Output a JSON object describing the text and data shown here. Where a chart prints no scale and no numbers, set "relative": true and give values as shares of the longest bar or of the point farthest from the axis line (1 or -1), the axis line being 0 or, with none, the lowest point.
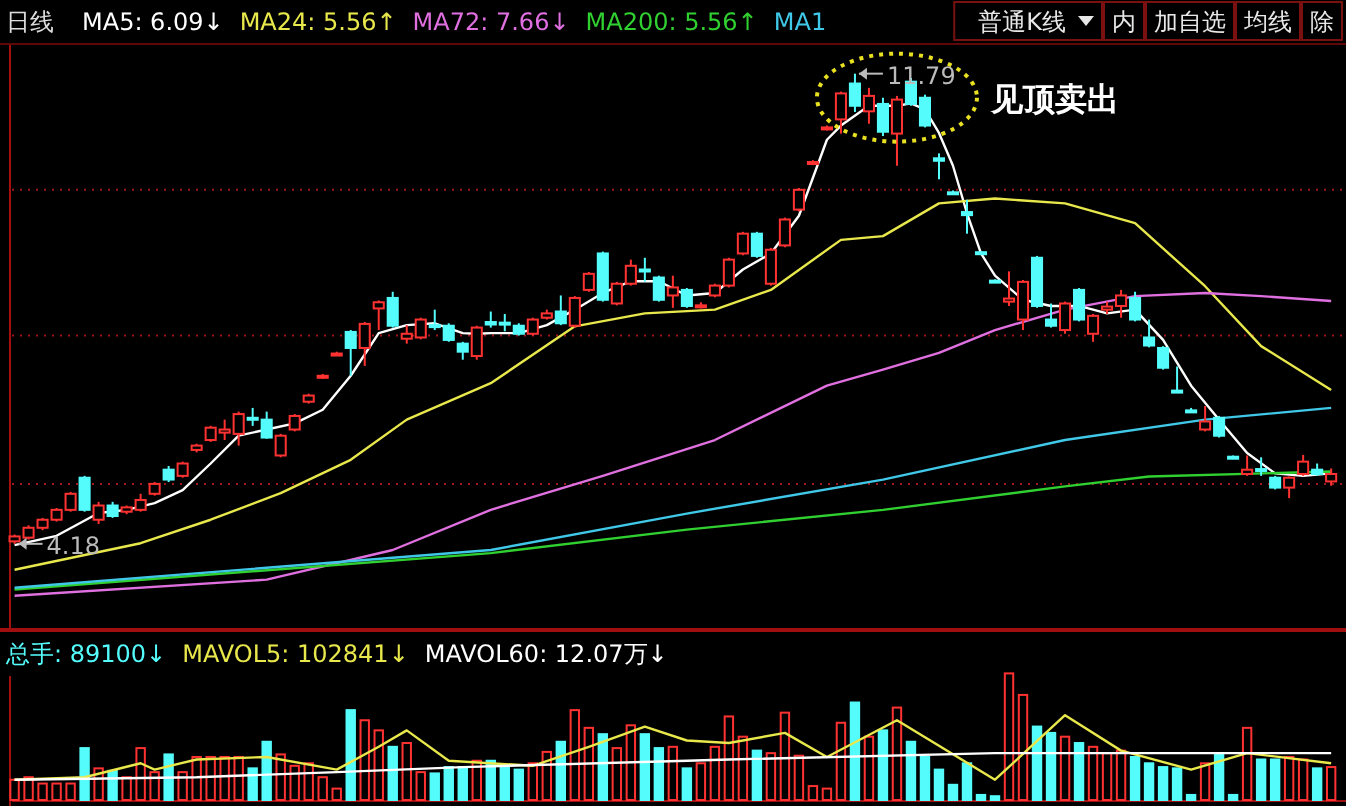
{
  "chart_data": [
    {
      "type": "candlestick",
      "categories": [
        null,
        null,
        null,
        null,
        null,
        null,
        null,
        null,
        null,
        null,
        null,
        null,
        null,
        null,
        null,
        null,
        null,
        null,
        null,
        null,
        null,
        null,
        null,
        null,
        null,
        null,
        null,
        null,
        null,
        null,
        null,
        null,
        null,
        null,
        null,
        null,
        null,
        null,
        null,
        null,
        null,
        null,
        null,
        null,
        null,
        null,
        null,
        null,
        null,
        null,
        null,
        null,
        null,
        null,
        null,
        null,
        null,
        null,
        null,
        null,
        null,
        null,
        null,
        null,
        null,
        null,
        null,
        null,
        null,
        null,
        null,
        null,
        null,
        null,
        null,
        null,
        null,
        null,
        null,
        null,
        null,
        null,
        null,
        null,
        null,
        null,
        null,
        null,
        null,
        null,
        null,
        null,
        null,
        null,
        null
      ],
      "ohlc": [
        [
          4.22,
          4.33,
          4.18,
          4.3
        ],
        [
          4.28,
          4.48,
          4.25,
          4.44
        ],
        [
          4.44,
          4.6,
          4.4,
          4.57
        ],
        [
          4.57,
          4.76,
          4.54,
          4.73
        ],
        [
          4.73,
          5.02,
          4.7,
          4.99
        ],
        [
          5.25,
          5.28,
          4.7,
          4.73
        ],
        [
          4.57,
          4.86,
          4.5,
          4.8
        ],
        [
          4.8,
          4.86,
          4.6,
          4.63
        ],
        [
          4.7,
          4.8,
          4.66,
          4.77
        ],
        [
          4.73,
          4.99,
          4.7,
          4.89
        ],
        [
          4.99,
          5.18,
          4.96,
          5.15
        ],
        [
          5.38,
          5.44,
          5.18,
          5.22
        ],
        [
          5.28,
          5.51,
          5.25,
          5.48
        ],
        [
          5.7,
          5.8,
          5.66,
          5.77
        ],
        [
          5.86,
          6.09,
          5.83,
          6.06
        ],
        [
          5.98,
          6.19,
          5.86,
          6.03
        ],
        [
          5.96,
          6.32,
          5.77,
          6.28
        ],
        [
          6.22,
          6.38,
          6.09,
          6.19
        ],
        [
          6.19,
          6.32,
          5.88,
          5.9
        ],
        [
          5.61,
          5.96,
          5.58,
          5.93
        ],
        [
          6.03,
          6.28,
          6.0,
          6.25
        ],
        [
          6.48,
          6.61,
          6.45,
          6.58
        ],
        [
          6.88,
          6.93,
          6.85,
          6.9
        ],
        [
          7.24,
          7.29,
          7.22,
          7.26
        ],
        [
          7.61,
          7.64,
          6.9,
          7.35
        ],
        [
          7.35,
          7.77,
          7.06,
          7.74
        ],
        [
          7.99,
          8.12,
          7.64,
          8.09
        ],
        [
          8.16,
          8.26,
          7.68,
          7.71
        ],
        [
          7.5,
          7.72,
          7.42,
          7.58
        ],
        [
          7.52,
          7.84,
          7.49,
          7.81
        ],
        [
          7.72,
          7.97,
          7.64,
          7.69
        ],
        [
          7.71,
          7.75,
          7.45,
          7.48
        ],
        [
          7.42,
          7.45,
          7.16,
          7.29
        ],
        [
          7.22,
          7.71,
          7.16,
          7.68
        ],
        [
          7.77,
          7.94,
          7.68,
          7.73
        ],
        [
          7.76,
          7.9,
          7.62,
          7.74
        ],
        [
          7.71,
          7.75,
          7.55,
          7.58
        ],
        [
          7.58,
          7.84,
          7.55,
          7.81
        ],
        [
          7.84,
          7.97,
          7.81,
          7.91
        ],
        [
          7.94,
          8.2,
          7.72,
          7.75
        ],
        [
          7.71,
          8.19,
          7.68,
          8.16
        ],
        [
          8.29,
          8.58,
          8.26,
          8.55
        ],
        [
          8.88,
          8.91,
          8.1,
          8.13
        ],
        [
          8.07,
          8.42,
          8.04,
          8.39
        ],
        [
          8.39,
          8.78,
          8.36,
          8.68
        ],
        [
          8.62,
          8.81,
          8.42,
          8.59
        ],
        [
          8.49,
          8.52,
          8.1,
          8.13
        ],
        [
          8.2,
          8.52,
          8.0,
          8.33
        ],
        [
          8.29,
          8.32,
          8.0,
          8.03
        ],
        [
          8.02,
          8.09,
          7.99,
          8.04
        ],
        [
          8.2,
          8.39,
          8.17,
          8.36
        ],
        [
          8.36,
          8.81,
          8.33,
          8.78
        ],
        [
          8.88,
          9.23,
          8.85,
          9.2
        ],
        [
          9.2,
          9.23,
          8.81,
          8.84
        ],
        [
          8.39,
          8.97,
          8.36,
          8.94
        ],
        [
          9.01,
          9.46,
          8.98,
          9.43
        ],
        [
          9.59,
          9.94,
          9.56,
          9.91
        ],
        [
          10.33,
          10.39,
          10.31,
          10.36
        ],
        [
          10.89,
          10.95,
          10.87,
          10.92
        ],
        [
          11.05,
          11.5,
          10.82,
          11.47
        ],
        [
          11.63,
          11.79,
          11.17,
          11.27
        ],
        [
          11.18,
          11.56,
          10.98,
          11.43
        ],
        [
          11.3,
          11.4,
          10.78,
          10.85
        ],
        [
          10.82,
          11.43,
          10.3,
          11.37
        ],
        [
          11.66,
          11.72,
          11.27,
          11.3
        ],
        [
          11.4,
          11.45,
          10.92,
          10.95
        ],
        [
          10.42,
          10.5,
          10.08,
          10.38
        ],
        [
          9.87,
          9.9,
          9.84,
          9.85
        ],
        [
          9.55,
          9.75,
          9.2,
          9.5
        ],
        [
          8.9,
          8.92,
          8.86,
          8.88
        ],
        [
          8.44,
          8.46,
          8.4,
          8.42
        ],
        [
          8.1,
          8.59,
          8.03,
          8.15
        ],
        [
          7.81,
          8.45,
          7.64,
          8.42
        ],
        [
          8.81,
          8.84,
          8.0,
          8.03
        ],
        [
          7.81,
          8.07,
          7.68,
          7.71
        ],
        [
          7.64,
          8.1,
          7.58,
          8.07
        ],
        [
          8.29,
          8.32,
          7.78,
          7.81
        ],
        [
          7.58,
          7.9,
          7.45,
          7.87
        ],
        [
          7.97,
          8.1,
          7.9,
          8.02
        ],
        [
          8.03,
          8.29,
          7.84,
          8.2
        ],
        [
          8.16,
          8.26,
          7.78,
          7.81
        ],
        [
          7.52,
          7.81,
          7.36,
          7.39
        ],
        [
          7.35,
          7.38,
          7.0,
          7.03
        ],
        [
          6.66,
          7.05,
          6.62,
          6.64
        ],
        [
          6.34,
          6.38,
          6.3,
          6.32
        ],
        [
          6.03,
          6.41,
          6.0,
          6.16
        ],
        [
          6.22,
          6.25,
          5.9,
          5.93
        ],
        [
          5.59,
          5.61,
          5.55,
          5.57
        ],
        [
          5.31,
          5.61,
          5.28,
          5.38
        ],
        [
          5.39,
          5.58,
          5.28,
          5.38
        ],
        [
          5.25,
          5.28,
          5.06,
          5.09
        ],
        [
          5.09,
          5.27,
          4.92,
          5.25
        ],
        [
          5.31,
          5.62,
          5.28,
          5.51
        ],
        [
          5.38,
          5.48,
          5.28,
          5.31
        ],
        [
          5.19,
          5.4,
          5.12,
          5.31
        ]
      ],
      "ylim": [
        2.85,
        12.27
      ],
      "yticks": [
        {
          "value": 5.15,
          "label": null
        },
        {
          "value": 7.55,
          "label": null
        },
        {
          "value": 9.91,
          "label": null
        }
      ],
      "grid": "y",
      "legend": "top left",
      "series": [
        {
          "name": "MA5: 6.09↓",
          "type": "line",
          "color": "#ffffff",
          "values": [
            4.16,
            null,
            null,
            4.31,
            null,
            null,
            4.68,
            null,
            4.73,
            null,
            4.84,
            null,
            5.05,
            null,
            5.48,
            null,
            5.93,
            null,
            6.03,
            null,
            6.13,
            null,
            6.35,
            null,
            6.9,
            null,
            7.59,
            null,
            7.72,
            null,
            7.75,
            null,
            7.59,
            7.58,
            7.59,
            null,
            7.59,
            null,
            7.72,
            null,
            7.97,
            null,
            8.24,
            null,
            8.43,
            null,
            8.43,
            null,
            8.2,
            null,
            8.24,
            null,
            8.62,
            null,
            8.88,
            null,
            9.49,
            null,
            10.72,
            10.95,
            null,
            11.27,
            null,
            11.27,
            11.31,
            11.21,
            10.83,
            10.3,
            9.53,
            8.88,
            8.52,
            null,
            8.13,
            null,
            8.03,
            null,
            8.03,
            null,
            7.91,
            null,
            7.97,
            null,
            7.48,
            null,
            6.74,
            null,
            6.19,
            null,
            5.65,
            null,
            5.32,
            null,
            5.28,
            null,
            5.32
          ]
        },
        {
          "name": "MA24: 5.56↑",
          "type": "line",
          "color": "#e8e84c",
          "values": [
            3.76,
            null,
            null,
            null,
            null,
            null,
            null,
            null,
            null,
            4.19,
            null,
            null,
            null,
            null,
            4.57,
            null,
            null,
            null,
            null,
            5.0,
            null,
            null,
            null,
            null,
            5.54,
            null,
            null,
            null,
            6.19,
            null,
            null,
            null,
            null,
            null,
            6.78,
            null,
            null,
            null,
            null,
            null,
            7.7,
            null,
            null,
            null,
            null,
            7.91,
            null,
            null,
            null,
            null,
            7.97,
            null,
            null,
            null,
            8.29,
            null,
            null,
            null,
            null,
            9.1,
            null,
            null,
            9.16,
            null,
            null,
            null,
            9.69,
            null,
            null,
            null,
            9.77,
            null,
            null,
            null,
            null,
            9.69,
            null,
            null,
            null,
            null,
            9.37,
            null,
            null,
            null,
            null,
            8.35,
            null,
            null,
            null,
            7.38,
            null,
            null,
            null,
            null,
            6.67
          ]
        },
        {
          "name": "MA72: 7.66↓",
          "type": "line",
          "color": "#e070e0",
          "values": [
            3.34,
            null,
            null,
            null,
            null,
            null,
            null,
            null,
            null,
            null,
            null,
            null,
            null,
            null,
            null,
            null,
            null,
            null,
            3.6,
            null,
            null,
            null,
            null,
            null,
            null,
            null,
            null,
            4.08,
            null,
            null,
            null,
            null,
            null,
            null,
            4.73,
            null,
            null,
            null,
            null,
            null,
            null,
            null,
            5.28,
            null,
            null,
            null,
            null,
            null,
            null,
            null,
            5.86,
            null,
            null,
            null,
            null,
            null,
            null,
            null,
            6.74,
            null,
            null,
            null,
            7.0,
            null,
            null,
            null,
            7.27,
            null,
            null,
            null,
            7.64,
            null,
            null,
            null,
            null,
            7.97,
            null,
            null,
            null,
            null,
            8.19,
            null,
            null,
            null,
            null,
            8.24,
            null,
            null,
            null,
            8.19,
            null,
            null,
            null,
            null,
            8.11
          ]
        },
        {
          "name": "MA200: 5.56↑",
          "type": "line",
          "color": "#30d030",
          "values": [
            3.44,
            null,
            null,
            null,
            null,
            null,
            null,
            null,
            null,
            null,
            null,
            null,
            null,
            null,
            null,
            null,
            null,
            null,
            null,
            null,
            null,
            null,
            null,
            null,
            null,
            null,
            null,
            null,
            null,
            null,
            null,
            null,
            null,
            null,
            4.03,
            null,
            null,
            null,
            null,
            null,
            null,
            null,
            null,
            null,
            null,
            null,
            null,
            null,
            4.41,
            null,
            null,
            null,
            null,
            null,
            null,
            null,
            null,
            null,
            null,
            null,
            null,
            null,
            4.73,
            null,
            null,
            null,
            null,
            null,
            null,
            null,
            null,
            null,
            null,
            null,
            null,
            5.11,
            null,
            null,
            null,
            null,
            null,
            5.27,
            null,
            null,
            null,
            null,
            null,
            null,
            null,
            null,
            null,
            null,
            null,
            null,
            5.35
          ]
        },
        {
          "name": "MA1",
          "type": "line",
          "color": "#40c8e8",
          "values": [
            3.47,
            null,
            null,
            null,
            null,
            null,
            null,
            null,
            null,
            null,
            null,
            null,
            null,
            null,
            null,
            null,
            null,
            null,
            null,
            null,
            null,
            null,
            null,
            null,
            null,
            null,
            null,
            null,
            null,
            null,
            null,
            null,
            null,
            null,
            4.08,
            null,
            null,
            null,
            null,
            null,
            null,
            null,
            null,
            null,
            null,
            null,
            null,
            null,
            4.67,
            null,
            null,
            null,
            null,
            null,
            null,
            null,
            null,
            null,
            null,
            null,
            null,
            null,
            5.22,
            null,
            null,
            null,
            null,
            null,
            null,
            null,
            null,
            null,
            null,
            null,
            null,
            5.86,
            null,
            null,
            null,
            null,
            null,
            null,
            null,
            null,
            null,
            6.19,
            null,
            null,
            null,
            null,
            null,
            null,
            null,
            null,
            6.38
          ]
        }
      ],
      "annotations": [
        "日线",
        "普通K线",
        "内",
        "加自选",
        "均线",
        "除",
        {
          "text": "11.79",
          "y": 11.79
        },
        "4.18",
        "见顶卖出"
      ]
    },
    {
      "type": "bar",
      "relative": true,
      "categories": [
        null,
        null,
        null,
        null,
        null,
        null,
        null,
        null,
        null,
        null,
        null,
        null,
        null,
        null,
        null,
        null,
        null,
        null,
        null,
        null,
        null,
        null,
        null,
        null,
        null,
        null,
        null,
        null,
        null,
        null,
        null,
        null,
        null,
        null,
        null,
        null,
        null,
        null,
        null,
        null,
        null,
        null,
        null,
        null,
        null,
        null,
        null,
        null,
        null,
        null,
        null,
        null,
        null,
        null,
        null,
        null,
        null,
        null,
        null,
        null,
        null,
        null,
        null,
        null,
        null,
        null,
        null,
        null,
        null,
        null,
        null,
        null,
        null,
        null,
        null,
        null,
        null,
        null,
        null,
        null,
        null,
        null,
        null,
        null,
        null,
        null,
        null,
        null,
        null,
        null,
        null,
        null,
        null,
        null,
        null
      ],
      "series": [
        {
          "name": "总手: 89100↓",
          "color": "#54fcfc",
          "values": [
            0.16,
            0.18,
            0.13,
            0.13,
            0.13,
            0.41,
            0.25,
            0.23,
            0.18,
            0.41,
            0.22,
            0.36,
            0.22,
            0.34,
            0.34,
            0.34,
            0.34,
            0.25,
            0.46,
            0.36,
            0.27,
            0.29,
            0.18,
            0.09,
            0.71,
            0.63,
            0.55,
            0.42,
            0.45,
            0.22,
            0.21,
            0.26,
            0.26,
            0.31,
            0.31,
            0.27,
            0.24,
            0.29,
            0.38,
            0.46,
            0.71,
            0.57,
            0.52,
            0.41,
            0.59,
            0.52,
            0.41,
            0.42,
            0.25,
            0.29,
            0.42,
            0.66,
            0.5,
            0.39,
            0.37,
            0.69,
            0.35,
            0.11,
            0.09,
            0.61,
            0.77,
            0.5,
            0.55,
            0.73,
            0.46,
            0.34,
            0.24,
            0.12,
            0.29,
            0.04,
            0.03,
            1,
            0.83,
            0.58,
            0.53,
            0.5,
            0.45,
            0.42,
            0.37,
            0.39,
            0.34,
            0.29,
            0.26,
            0.25,
            0.04,
            0.29,
            0.37,
            0.04,
            0.57,
            0.32,
            0.32,
            0.34,
            0.32,
            0.25,
            0.26
          ],
          "colors": [
            "#ff3232",
            "#ff3232",
            "#ff3232",
            "#ff3232",
            "#ff3232",
            "#54fcfc",
            "#ff3232",
            "#54fcfc",
            "#ff3232",
            "#ff3232",
            "#ff3232",
            "#54fcfc",
            "#ff3232",
            "#ff3232",
            "#ff3232",
            "#ff3232",
            "#ff3232",
            "#54fcfc",
            "#54fcfc",
            "#ff3232",
            "#ff3232",
            "#ff3232",
            "#ff3232",
            "#ff3232",
            "#54fcfc",
            "#ff3232",
            "#ff3232",
            "#54fcfc",
            "#ff3232",
            "#ff3232",
            "#54fcfc",
            "#54fcfc",
            "#54fcfc",
            "#ff3232",
            "#54fcfc",
            "#54fcfc",
            "#54fcfc",
            "#ff3232",
            "#ff3232",
            "#54fcfc",
            "#ff3232",
            "#ff3232",
            "#54fcfc",
            "#ff3232",
            "#ff3232",
            "#54fcfc",
            "#54fcfc",
            "#ff3232",
            "#54fcfc",
            "#ff3232",
            "#ff3232",
            "#ff3232",
            "#ff3232",
            "#54fcfc",
            "#ff3232",
            "#ff3232",
            "#ff3232",
            "#ff3232",
            "#ff3232",
            "#ff3232",
            "#54fcfc",
            "#ff3232",
            "#54fcfc",
            "#ff3232",
            "#54fcfc",
            "#54fcfc",
            "#54fcfc",
            "#54fcfc",
            "#54fcfc",
            "#54fcfc",
            "#54fcfc",
            "#ff3232",
            "#ff3232",
            "#54fcfc",
            "#54fcfc",
            "#ff3232",
            "#54fcfc",
            "#ff3232",
            "#ff3232",
            "#ff3232",
            "#54fcfc",
            "#54fcfc",
            "#54fcfc",
            "#54fcfc",
            "#54fcfc",
            "#ff3232",
            "#54fcfc",
            "#54fcfc",
            "#ff3232",
            "#54fcfc",
            "#54fcfc",
            "#ff3232",
            "#ff3232",
            "#54fcfc",
            "#ff3232"
          ]
        },
        {
          "name": "MAVOL5: 102841↓",
          "type": "line",
          "color": "#e8e84c",
          "values": [
            0.16,
            null,
            null,
            null,
            null,
            0.18,
            null,
            null,
            null,
            0.29,
            0.24,
            null,
            null,
            0.32,
            null,
            null,
            null,
            null,
            0.34,
            null,
            null,
            null,
            null,
            0.24,
            null,
            null,
            0.42,
            null,
            0.55,
            null,
            null,
            0.31,
            null,
            null,
            null,
            null,
            null,
            0.27,
            null,
            null,
            null,
            0.42,
            null,
            null,
            null,
            0.58,
            null,
            null,
            0.47,
            null,
            null,
            0.45,
            null,
            null,
            null,
            0.53,
            null,
            null,
            0.34,
            null,
            null,
            null,
            null,
            0.63,
            null,
            null,
            null,
            null,
            null,
            null,
            0.16,
            null,
            null,
            null,
            null,
            0.67,
            null,
            null,
            null,
            0.39,
            null,
            null,
            null,
            null,
            0.24,
            null,
            null,
            null,
            0.37,
            null,
            null,
            null,
            null,
            null,
            0.29
          ]
        },
        {
          "name": "MAVOL60: 12.07万↓",
          "type": "line",
          "color": "#ffffff",
          "values": [
            0.16,
            null,
            null,
            null,
            null,
            null,
            null,
            null,
            null,
            null,
            null,
            null,
            null,
            0.18,
            null,
            null,
            null,
            null,
            null,
            null,
            null,
            null,
            null,
            0.22,
            null,
            null,
            null,
            null,
            null,
            null,
            null,
            null,
            0.26,
            null,
            null,
            null,
            null,
            null,
            null,
            null,
            null,
            null,
            null,
            null,
            null,
            null,
            null,
            null,
            0.31,
            null,
            null,
            0.32,
            null,
            null,
            null,
            null,
            null,
            null,
            null,
            null,
            null,
            null,
            null,
            null,
            null,
            null,
            null,
            null,
            null,
            null,
            0.37,
            null,
            null,
            null,
            null,
            null,
            null,
            null,
            null,
            null,
            null,
            null,
            null,
            null,
            null,
            null,
            null,
            null,
            null,
            null,
            null,
            null,
            null,
            null,
            0.37
          ]
        }
      ]
    }
  ]
}
